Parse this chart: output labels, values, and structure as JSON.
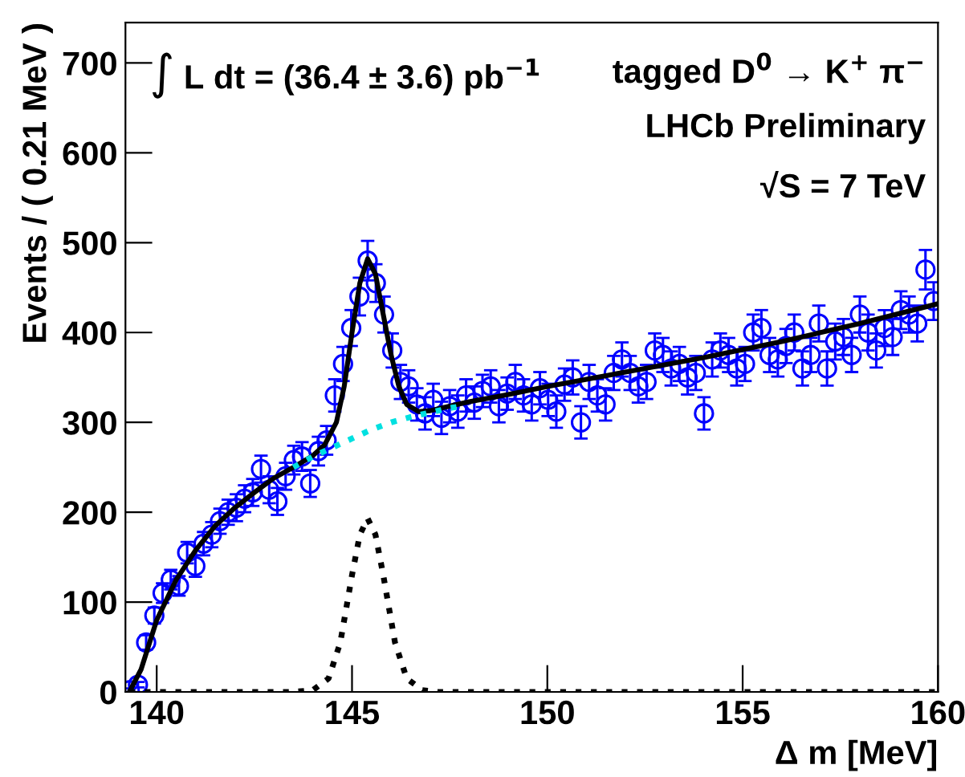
{
  "chart_data": {
    "type": "scatter",
    "xlabel": "Δ m [MeV]",
    "ylabel": "Events / ( 0.21 MeV )",
    "annotations": [
      "∫ L dt = (36.4 ± 3.6) pb$^{−1}$",
      "tagged D$^{0}$ → K$^{+}$ π$^{−}$",
      "LHCb Preliminary",
      "√S = 7 TeV"
    ],
    "xlim": [
      139.2,
      160
    ],
    "xticks": [
      140,
      145,
      150,
      155,
      160
    ],
    "ylim": [
      0,
      745
    ],
    "yticks": [
      0,
      100,
      200,
      300,
      400,
      500,
      600,
      700
    ],
    "grid": false,
    "legend": false,
    "series": [
      {
        "color": "#0000ff",
        "marker": "circle",
        "x": [
          139.31,
          139.52,
          139.73,
          139.94,
          140.15,
          140.36,
          140.57,
          140.78,
          140.99,
          141.2,
          141.41,
          141.62,
          141.83,
          142.04,
          142.25,
          142.46,
          142.67,
          142.88,
          143.09,
          143.3,
          143.51,
          143.72,
          143.93,
          144.14,
          144.35,
          144.56,
          144.77,
          144.98,
          145.19,
          145.4,
          145.61,
          145.82,
          146.03,
          146.24,
          146.45,
          146.66,
          146.87,
          147.08,
          147.29,
          147.5,
          147.71,
          147.92,
          148.13,
          148.34,
          148.55,
          148.76,
          148.97,
          149.18,
          149.39,
          149.6,
          149.81,
          150.02,
          150.23,
          150.44,
          150.65,
          150.86,
          151.07,
          151.28,
          151.49,
          151.7,
          151.91,
          152.12,
          152.33,
          152.54,
          152.75,
          152.96,
          153.17,
          153.38,
          153.59,
          153.8,
          154.01,
          154.22,
          154.43,
          154.64,
          154.85,
          155.06,
          155.27,
          155.48,
          155.69,
          155.9,
          156.11,
          156.32,
          156.53,
          156.74,
          156.95,
          157.16,
          157.37,
          157.58,
          157.79,
          158.0,
          158.21,
          158.42,
          158.63,
          158.84,
          159.05,
          159.26,
          159.47,
          159.68,
          159.89
        ],
        "values": [
          2,
          8,
          55,
          85,
          110,
          125,
          118,
          155,
          140,
          165,
          175,
          190,
          200,
          205,
          215,
          222,
          248,
          225,
          212,
          240,
          258,
          262,
          232,
          268,
          280,
          330,
          365,
          405,
          440,
          480,
          455,
          420,
          380,
          345,
          340,
          320,
          310,
          325,
          305,
          318,
          312,
          330,
          322,
          335,
          340,
          318,
          332,
          345,
          330,
          320,
          338,
          325,
          312,
          342,
          350,
          300,
          345,
          330,
          320,
          355,
          370,
          355,
          340,
          345,
          380,
          375,
          360,
          365,
          350,
          355,
          310,
          370,
          380,
          375,
          360,
          365,
          400,
          405,
          375,
          370,
          385,
          400,
          360,
          375,
          410,
          360,
          390,
          395,
          375,
          420,
          400,
          380,
          405,
          395,
          425,
          420,
          410,
          470,
          435
        ],
        "errors": [
          2,
          3,
          8,
          9,
          11,
          11,
          11,
          12,
          12,
          13,
          14,
          14,
          14,
          15,
          15,
          15,
          15,
          15,
          15,
          15,
          16,
          16,
          15,
          16,
          16,
          18,
          19,
          20,
          21,
          22,
          21,
          20,
          19,
          19,
          18,
          18,
          18,
          18,
          18,
          18,
          18,
          18,
          18,
          18,
          18,
          18,
          18,
          19,
          18,
          18,
          18,
          18,
          18,
          18,
          19,
          18,
          19,
          18,
          18,
          19,
          19,
          19,
          18,
          19,
          19,
          19,
          19,
          19,
          19,
          19,
          18,
          19,
          19,
          19,
          19,
          19,
          20,
          20,
          19,
          19,
          19,
          20,
          19,
          19,
          20,
          19,
          20,
          20,
          19,
          20,
          20,
          19,
          20,
          20,
          21,
          20,
          20,
          22,
          21
        ]
      },
      {
        "type": "line",
        "color": "#000000",
        "line_style": "solid",
        "x": [
          139.3,
          139.6,
          140,
          140.5,
          141,
          141.5,
          142,
          142.5,
          143,
          143.5,
          144,
          144.3,
          144.6,
          144.8,
          145,
          145.2,
          145.4,
          145.6,
          145.8,
          146,
          146.2,
          146.4,
          146.7,
          147,
          147.5,
          148,
          149,
          150,
          152,
          154,
          156,
          158,
          160
        ],
        "values": [
          0,
          25,
          80,
          125,
          158,
          185,
          205,
          222,
          238,
          250,
          263,
          275,
          300,
          340,
          400,
          455,
          482,
          465,
          420,
          375,
          340,
          320,
          312,
          313,
          318,
          323,
          331,
          340,
          356,
          372,
          390,
          410,
          432
        ]
      },
      {
        "type": "line",
        "color": "#00e0e0",
        "line_style": "dotted",
        "x": [
          143.5,
          144,
          144.5,
          145,
          145.5,
          146,
          146.5,
          147,
          147.5,
          147.8
        ],
        "values": [
          250,
          262,
          272,
          282,
          292,
          300,
          306,
          311,
          316,
          318
        ]
      },
      {
        "type": "line",
        "color": "#000000",
        "line_style": "dotted",
        "x": [
          139.3,
          143.5,
          144,
          144.4,
          144.7,
          145,
          145.2,
          145.4,
          145.6,
          145.8,
          146.1,
          146.4,
          146.8,
          147.2,
          160
        ],
        "values": [
          0,
          0,
          2,
          15,
          55,
          130,
          175,
          193,
          175,
          130,
          55,
          15,
          2,
          0,
          0
        ]
      }
    ]
  }
}
